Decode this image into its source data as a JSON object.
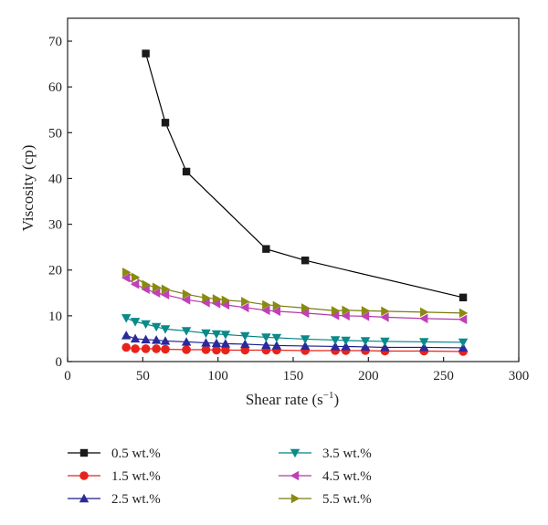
{
  "chart_data": {
    "type": "line",
    "xlabel": "Shear rate (s",
    "xlabel_sup": "−1",
    "xlabel_close": ")",
    "ylabel": "Viscosity (cp)",
    "xlim": [
      0,
      300
    ],
    "ylim": [
      0,
      75
    ],
    "xticks": [
      0,
      50,
      100,
      150,
      200,
      250,
      300
    ],
    "yticks": [
      0,
      10,
      20,
      30,
      40,
      50,
      60,
      70
    ],
    "grid": false,
    "legend_position": "bottom",
    "series": [
      {
        "name": "0.5 wt.%",
        "marker": "square",
        "color": "#000000",
        "fill": "#1a1a1a",
        "x": [
          52,
          65,
          79,
          132,
          158,
          263
        ],
        "y": [
          67.3,
          52.2,
          41.5,
          24.6,
          22.1,
          14.0
        ]
      },
      {
        "name": "1.5 wt.%",
        "marker": "circle",
        "color": "#e8231b",
        "fill": "#e8231b",
        "x": [
          39,
          45,
          52,
          59,
          65,
          79,
          92,
          99,
          105,
          118,
          132,
          139,
          158,
          178,
          185,
          198,
          211,
          237,
          263
        ],
        "y": [
          3.1,
          2.8,
          2.8,
          2.8,
          2.7,
          2.6,
          2.6,
          2.5,
          2.5,
          2.5,
          2.5,
          2.5,
          2.4,
          2.4,
          2.4,
          2.4,
          2.3,
          2.3,
          2.2
        ]
      },
      {
        "name": "2.5 wt.%",
        "marker": "triangle-up",
        "color": "#1a1a8c",
        "fill": "#2a2a9c",
        "x": [
          39,
          45,
          52,
          59,
          65,
          79,
          92,
          99,
          105,
          118,
          132,
          139,
          158,
          178,
          185,
          198,
          211,
          237,
          263
        ],
        "y": [
          5.7,
          5.0,
          4.8,
          4.7,
          4.5,
          4.3,
          4.1,
          4.0,
          3.9,
          3.8,
          3.6,
          3.5,
          3.4,
          3.3,
          3.3,
          3.2,
          3.1,
          3.1,
          3.0
        ]
      },
      {
        "name": "3.5 wt.%",
        "marker": "triangle-down",
        "color": "#008080",
        "fill": "#0a8a8a",
        "x": [
          39,
          45,
          52,
          59,
          65,
          79,
          92,
          99,
          105,
          118,
          132,
          139,
          158,
          178,
          185,
          198,
          211,
          237,
          263
        ],
        "y": [
          9.5,
          8.7,
          8.2,
          7.6,
          7.1,
          6.7,
          6.2,
          6.0,
          5.9,
          5.6,
          5.3,
          5.2,
          4.9,
          4.7,
          4.6,
          4.5,
          4.4,
          4.3,
          4.2
        ]
      },
      {
        "name": "4.5 wt.%",
        "marker": "triangle-left",
        "color": "#b03aa8",
        "fill": "#c040b8",
        "x": [
          39,
          45,
          52,
          59,
          65,
          79,
          92,
          99,
          105,
          118,
          132,
          139,
          158,
          178,
          185,
          198,
          211,
          237,
          263
        ],
        "y": [
          18.3,
          16.9,
          15.8,
          15.0,
          14.6,
          13.5,
          12.9,
          12.7,
          12.4,
          11.8,
          11.2,
          11.0,
          10.6,
          10.1,
          10.0,
          9.9,
          9.7,
          9.4,
          9.2
        ]
      },
      {
        "name": "5.5 wt.%",
        "marker": "triangle-right",
        "color": "#7a7a10",
        "fill": "#8a8a10",
        "x": [
          39,
          45,
          52,
          59,
          65,
          79,
          92,
          99,
          105,
          118,
          132,
          139,
          158,
          178,
          185,
          198,
          211,
          237,
          263
        ],
        "y": [
          19.5,
          18.4,
          16.8,
          16.2,
          15.8,
          14.7,
          13.9,
          13.7,
          13.4,
          13.1,
          12.4,
          12.2,
          11.7,
          11.1,
          11.2,
          11.1,
          11.0,
          10.8,
          10.6
        ]
      }
    ]
  }
}
